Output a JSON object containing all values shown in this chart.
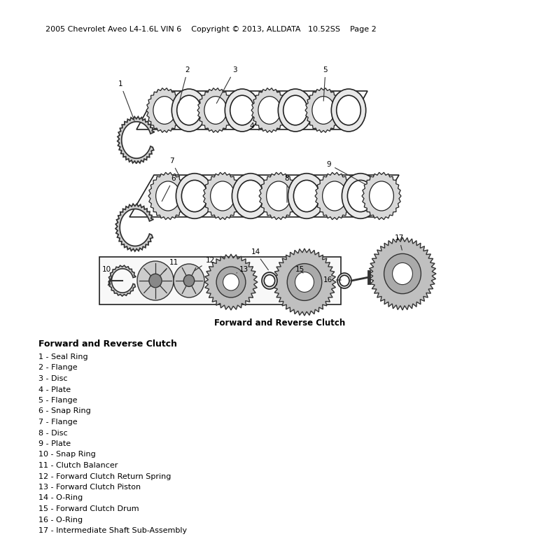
{
  "header": "2005 Chevrolet Aveo L4-1.6L VIN 6    Copyright © 2013, ALLDATA   10.52SS    Page 2",
  "diagram_caption": "Forward and Reverse Clutch",
  "section_title": "Forward and Reverse Clutch",
  "parts": [
    "1 - Seal Ring",
    "2 - Flange",
    "3 - Disc",
    "4 - Plate",
    "5 - Flange",
    "6 - Snap Ring",
    "7 - Flange",
    "8 - Disc",
    "9 - Plate",
    "10 - Snap Ring",
    "11 - Clutch Balancer",
    "12 - Forward Clutch Return Spring",
    "13 - Forward Clutch Piston",
    "14 - O-Ring",
    "15 - Forward Clutch Drum",
    "16 - O-Ring",
    "17 - Intermediate Shaft Sub-Assembly"
  ],
  "bg_color": "#ffffff",
  "text_color": "#000000",
  "header_fontsize": 8,
  "caption_fontsize": 8.5,
  "section_fontsize": 9,
  "parts_fontsize": 8
}
